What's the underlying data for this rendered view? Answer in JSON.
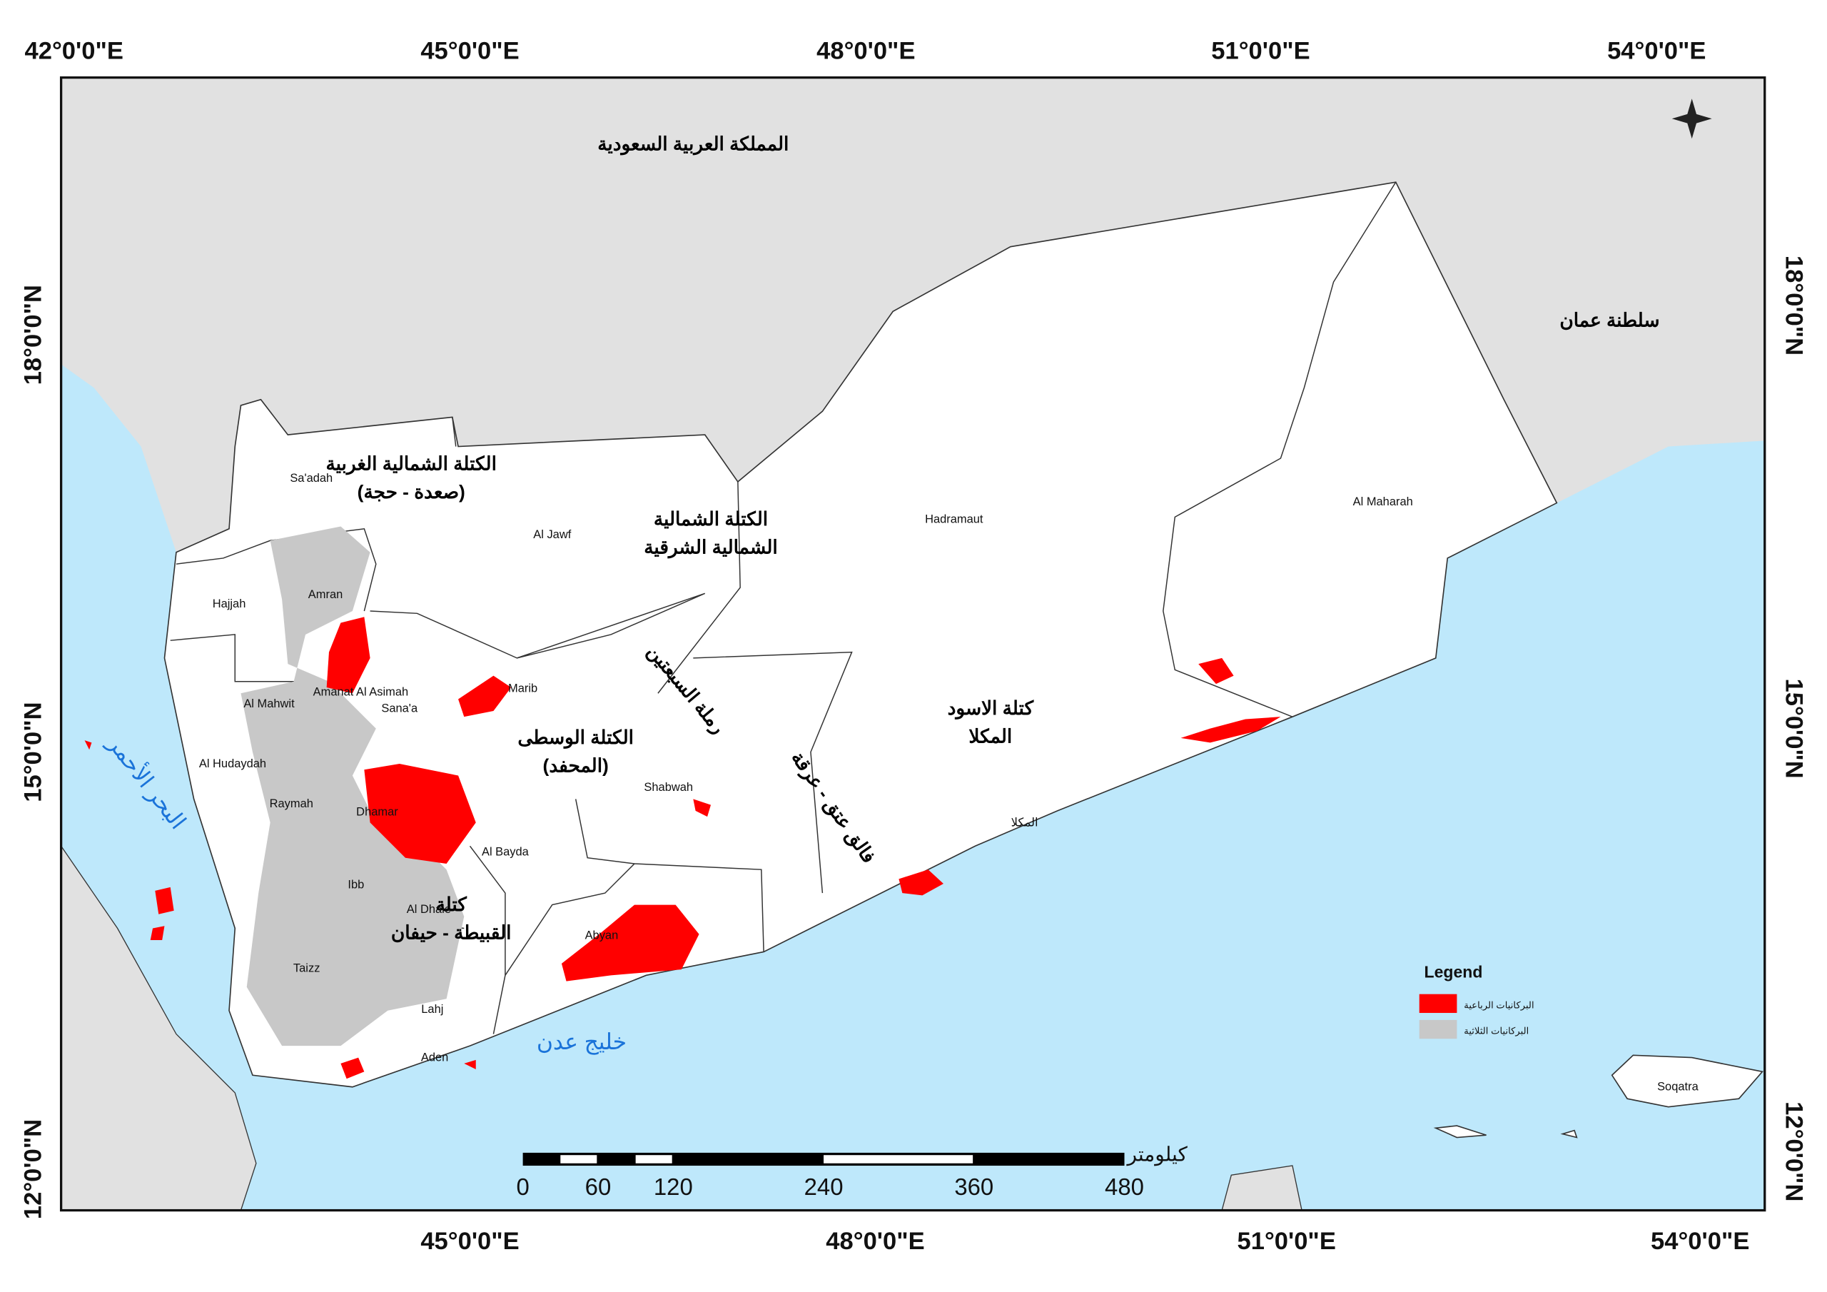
{
  "graticule": {
    "top": [
      "42°0'0\"E",
      "45°0'0\"E",
      "48°0'0\"E",
      "51°0'0\"E",
      "54°0'0\"E"
    ],
    "bottom": [
      "45°0'0\"E",
      "48°0'0\"E",
      "51°0'0\"E",
      "54°0'0\"E"
    ],
    "left": [
      "18°0'0\"N",
      "15°0'0\"N",
      "12°0'0\"N"
    ],
    "right": [
      "18°0'0\"N",
      "15°0'0\"N",
      "12°0'0\"N"
    ]
  },
  "countries": [
    "المملكة العربية السعودية",
    "سلطنة عمان"
  ],
  "seas": [
    "البحر الأحمر",
    "خليج عدن"
  ],
  "regions": [
    [
      "الكتلة الشمالية الغربية",
      "(صعدة - حجة)"
    ],
    [
      "الكتلة الشمالية",
      "الشمالية الشرقية"
    ],
    [
      "الكتلة الوسطى",
      "(المحفد)"
    ],
    [
      "كتلة الاسود",
      "المكلا"
    ],
    [
      "كتلة",
      "القبيطة - حيفان"
    ],
    [
      "رملة السبعتين"
    ],
    [
      "فالق عتق - عرقة"
    ]
  ],
  "places": [
    "Sa'adah",
    "Al Jawf",
    "Hadramaut",
    "Al Maharah",
    "Hajjah",
    "Amran",
    "Amanat Al Asimah",
    "Sana'a",
    "Marib",
    "Al Mahwit",
    "Al Hudaydah",
    "Raymah",
    "Dhamar",
    "Shabwah",
    "Al Bayda",
    "Ibb",
    "Al Dhale",
    "Abyan",
    "Taizz",
    "Lahj",
    "Aden",
    "Soqatra",
    "المكلا"
  ],
  "legend": {
    "title": "Legend",
    "items": [
      "البركانيات الرباعية",
      "البركانيات الثلاثية"
    ]
  },
  "scale_bar": {
    "unit": "كيلومتر",
    "ticks": [
      0,
      60,
      120,
      240,
      360,
      480
    ]
  }
}
